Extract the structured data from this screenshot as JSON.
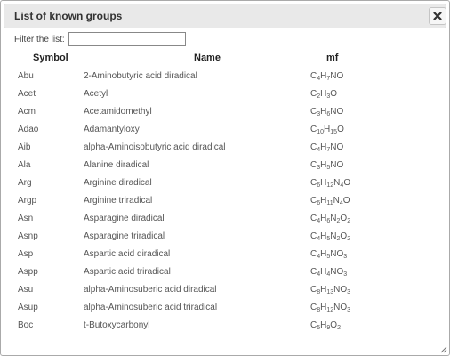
{
  "dialog": {
    "title": "List of known groups",
    "close_icon": "close-icon"
  },
  "filter": {
    "label": "Filter the list:",
    "value": "",
    "placeholder": ""
  },
  "table": {
    "headers": {
      "symbol": "Symbol",
      "name": "Name",
      "mf": "mf"
    },
    "rows": [
      {
        "symbol": "Abu",
        "name": "2-Aminobutyric acid diradical",
        "mf": "C4H7NO"
      },
      {
        "symbol": "Acet",
        "name": "Acetyl",
        "mf": "C2H3O"
      },
      {
        "symbol": "Acm",
        "name": "Acetamidomethyl",
        "mf": "C3H6NO"
      },
      {
        "symbol": "Adao",
        "name": "Adamantyloxy",
        "mf": "C10H15O"
      },
      {
        "symbol": "Aib",
        "name": "alpha-Aminoisobutyric acid diradical",
        "mf": "C4H7NO"
      },
      {
        "symbol": "Ala",
        "name": "Alanine diradical",
        "mf": "C3H5NO"
      },
      {
        "symbol": "Arg",
        "name": "Arginine diradical",
        "mf": "C6H12N4O"
      },
      {
        "symbol": "Argp",
        "name": "Arginine triradical",
        "mf": "C6H11N4O"
      },
      {
        "symbol": "Asn",
        "name": "Asparagine diradical",
        "mf": "C4H6N2O2"
      },
      {
        "symbol": "Asnp",
        "name": "Asparagine triradical",
        "mf": "C4H5N2O2"
      },
      {
        "symbol": "Asp",
        "name": "Aspartic acid diradical",
        "mf": "C4H5NO3"
      },
      {
        "symbol": "Aspp",
        "name": "Aspartic acid triradical",
        "mf": "C4H4NO3"
      },
      {
        "symbol": "Asu",
        "name": "alpha-Aminosuberic acid diradical",
        "mf": "C8H13NO3"
      },
      {
        "symbol": "Asup",
        "name": "alpha-Aminosuberic acid triradical",
        "mf": "C8H12NO3"
      },
      {
        "symbol": "Boc",
        "name": "t-Butoxycarbonyl",
        "mf": "C5H9O2"
      }
    ]
  },
  "resize_icon": "resize-handle-icon"
}
